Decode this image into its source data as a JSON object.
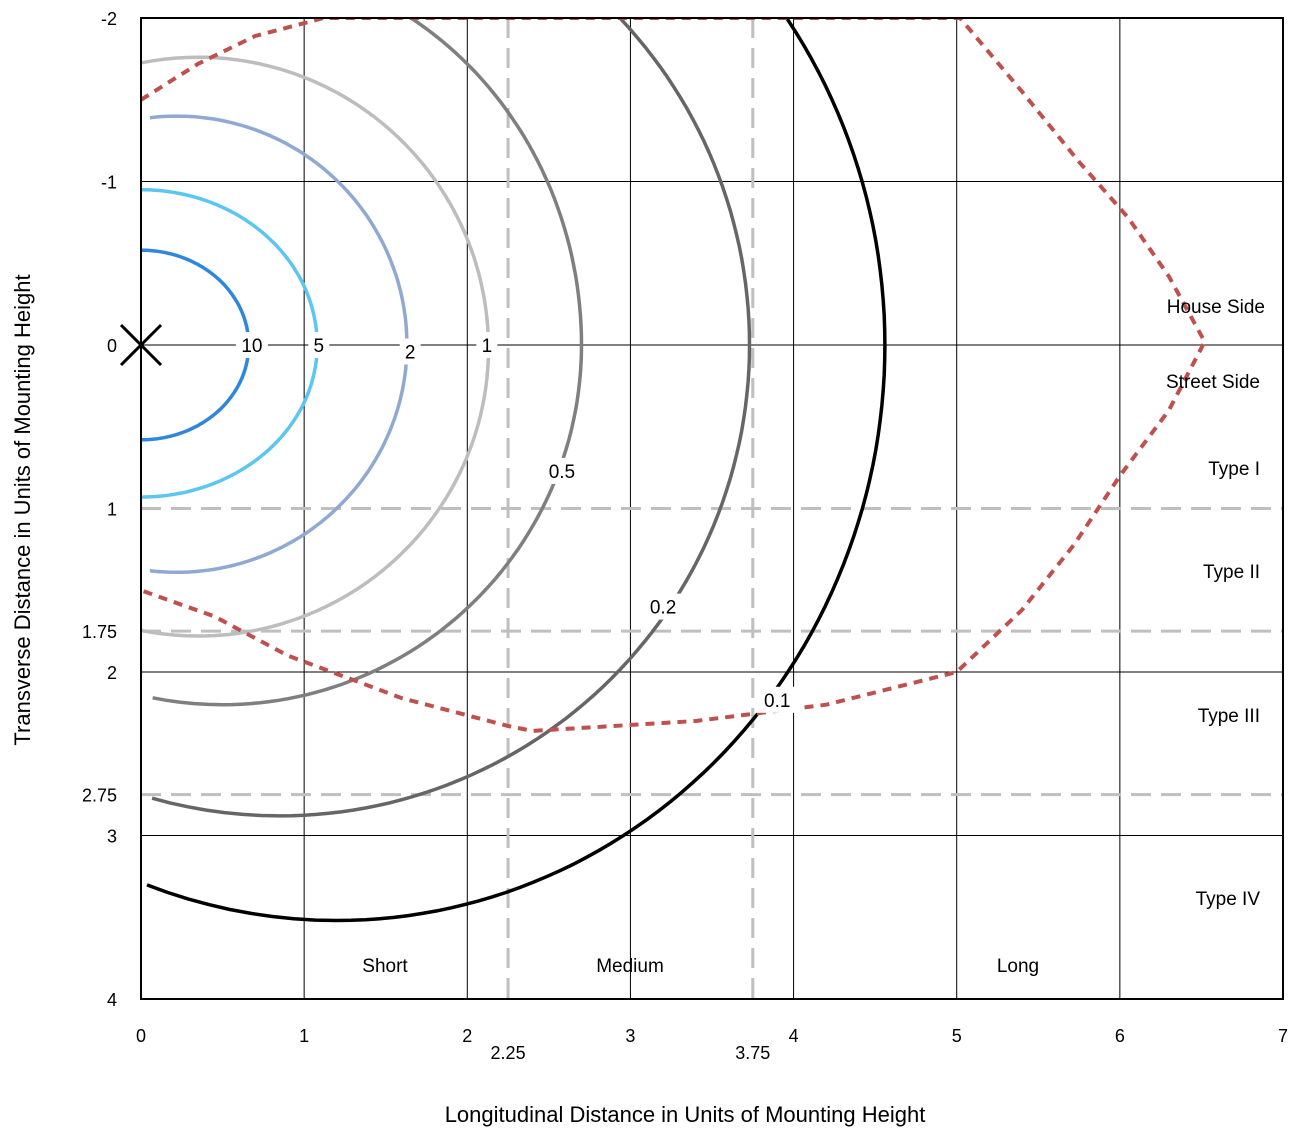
{
  "chart_data": {
    "type": "line",
    "xlabel": "Longitudinal Distance in Units of Mounting Height",
    "ylabel": "Transverse Distance in Units of Mounting Height",
    "xlim": [
      0,
      7
    ],
    "ylim": [
      -2,
      4
    ],
    "x_inverted": false,
    "y_inverted_top_is": -2,
    "grid": true,
    "x_ticks": [
      0,
      1,
      2,
      3,
      4,
      5,
      6,
      7
    ],
    "x_tick_labels": [
      "0",
      "1",
      "2",
      "3",
      "4",
      "5",
      "6",
      "7"
    ],
    "x_extra_ticks": [
      {
        "value": 2.25,
        "label": "2.25"
      },
      {
        "value": 3.75,
        "label": "3.75"
      }
    ],
    "y_ticks": [
      -2,
      -1,
      0,
      1,
      1.75,
      2,
      2.75,
      3,
      4
    ],
    "y_tick_labels": [
      "-2",
      "-1",
      "0",
      "1",
      "1.75",
      "2",
      "2.75",
      "3",
      "4"
    ],
    "luminaire_marker": {
      "x": 0,
      "y": 0,
      "symbol": "×"
    },
    "reference_lines": {
      "vertical": [
        2.25,
        3.75
      ],
      "horizontal": [
        1,
        1.75,
        2.75
      ],
      "color": "#bfbfbf"
    },
    "region_labels": {
      "house_side": "House Side",
      "street_side": "Street Side",
      "type1": "Type I",
      "type2": "Type II",
      "type3": "Type III",
      "type4": "Type IV",
      "short": "Short",
      "medium": "Medium",
      "long": "Long"
    },
    "series": [
      {
        "label": "10",
        "color": "#2e86de",
        "cx": 0.0,
        "cy": 0.0,
        "rx": 0.66,
        "ry_top": 0.58,
        "ry_bottom": 0.58,
        "label_pos": [
          0.68,
          0.0
        ]
      },
      {
        "label": "5",
        "color": "#5bc6f0",
        "cx": 0.0,
        "cy": 0.0,
        "rx": 1.08,
        "ry_top": 0.95,
        "ry_bottom": 0.93,
        "label_pos": [
          1.09,
          0.0
        ]
      },
      {
        "label": "2",
        "color": "#8fa9d2",
        "cx": 0.22,
        "cy": 0.0,
        "rx": 1.41,
        "ry_top": 1.4,
        "ry_bottom": 1.39,
        "label_pos": [
          1.65,
          0.04
        ]
      },
      {
        "label": "1",
        "color": "#bdbdbd",
        "cx": 0.35,
        "cy": 0.02,
        "rx": 1.78,
        "ry_top": 1.78,
        "ry_bottom": 1.76,
        "label_pos": [
          2.12,
          0.0
        ]
      },
      {
        "label": "0.5",
        "color": "#7f7f7f",
        "cx": 0.5,
        "cy": 0.0,
        "rx": 2.2,
        "ry_top": 2.35,
        "ry_bottom": 2.2,
        "label_pos": [
          2.58,
          0.77
        ]
      },
      {
        "label": "0.2",
        "color": "#666666",
        "cx": 0.85,
        "cy": 0.0,
        "rx": 2.88,
        "ry_top": 2.9,
        "ry_bottom": 2.88,
        "label_pos": [
          3.2,
          1.6
        ]
      },
      {
        "label": "0.1",
        "color": "#000000",
        "cx": 1.2,
        "cy": 0.0,
        "rx": 3.36,
        "ry_top": 3.5,
        "ry_bottom": 3.52,
        "label_pos": [
          3.9,
          2.17
        ]
      }
    ],
    "max_candela_trace": {
      "name": "",
      "color": "#c0504d",
      "dashed": true,
      "points": [
        [
          0.0,
          -1.5
        ],
        [
          0.35,
          -1.72
        ],
        [
          0.7,
          -1.89
        ],
        [
          1.12,
          -2.0
        ],
        [
          5.02,
          -2.0
        ],
        [
          5.4,
          -1.55
        ],
        [
          5.75,
          -1.12
        ],
        [
          6.05,
          -0.78
        ],
        [
          6.3,
          -0.42
        ],
        [
          6.52,
          -0.02
        ],
        [
          6.3,
          0.4
        ],
        [
          6.0,
          0.8
        ],
        [
          5.72,
          1.22
        ],
        [
          5.4,
          1.62
        ],
        [
          5.0,
          2.0
        ],
        [
          4.2,
          2.2
        ],
        [
          3.4,
          2.3
        ],
        [
          2.4,
          2.36
        ],
        [
          2.25,
          2.33
        ],
        [
          1.6,
          2.16
        ],
        [
          0.9,
          1.9
        ],
        [
          0.45,
          1.66
        ],
        [
          0.0,
          1.5
        ]
      ]
    }
  }
}
